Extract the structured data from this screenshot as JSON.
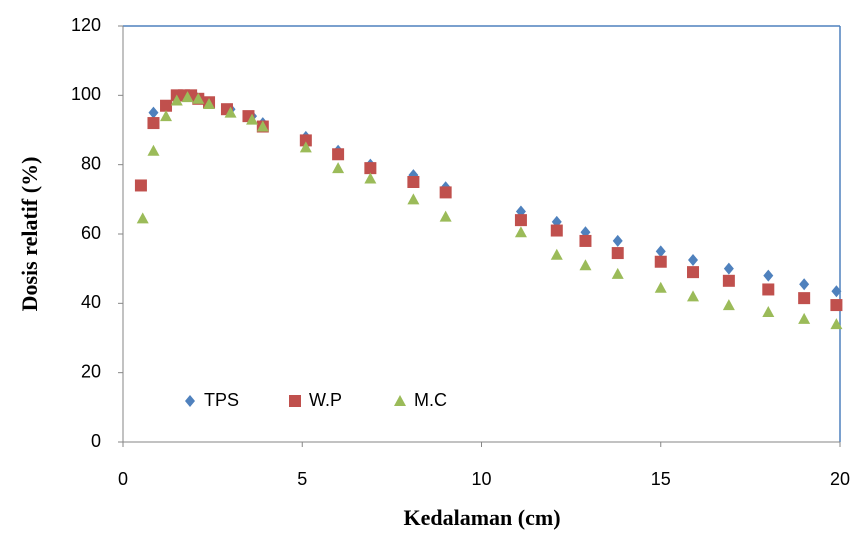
{
  "chart_data": {
    "type": "scatter",
    "xlabel": "Kedalaman (cm)",
    "ylabel": "Dosis relatif (%)",
    "xlim": [
      0,
      20
    ],
    "xticks": [
      0,
      5,
      10,
      15,
      20
    ],
    "ylim": [
      0,
      120
    ],
    "yticks": [
      0,
      20,
      40,
      60,
      80,
      100,
      120
    ],
    "series": [
      {
        "name": "TPS",
        "color": "#4f81bd",
        "marker": "diamond",
        "x": [
          0.85,
          1.5,
          1.8,
          2.0,
          2.4,
          3.0,
          3.6,
          3.9,
          5.1,
          6.0,
          6.9,
          8.1,
          9.0,
          11.1,
          12.1,
          12.9,
          13.8,
          15.0,
          15.9,
          16.9,
          18.0,
          19.0,
          19.9
        ],
        "values": [
          95,
          99,
          100,
          100,
          98,
          96,
          94,
          92,
          88,
          84,
          80,
          77,
          73.5,
          66.5,
          63.5,
          60.5,
          58,
          55,
          52.5,
          50,
          48,
          45.5,
          43.5
        ]
      },
      {
        "name": "W.P",
        "color": "#c0504d",
        "marker": "square",
        "x": [
          0.5,
          0.85,
          1.2,
          1.5,
          1.7,
          1.9,
          2.1,
          2.4,
          2.9,
          3.5,
          3.9,
          5.1,
          6.0,
          6.9,
          8.1,
          9.0,
          11.1,
          12.1,
          12.9,
          13.8,
          15.0,
          15.9,
          16.9,
          18.0,
          19.0,
          19.9
        ],
        "values": [
          74,
          92,
          97,
          100,
          100,
          100,
          99,
          98,
          96,
          94,
          91,
          87,
          83,
          79,
          75,
          72,
          64,
          61,
          58,
          54.5,
          52,
          49,
          46.5,
          44,
          41.5,
          39.5
        ]
      },
      {
        "name": "M.C",
        "color": "#9bbb59",
        "marker": "triangle",
        "x": [
          0.55,
          0.85,
          1.2,
          1.5,
          1.8,
          2.1,
          2.4,
          3.0,
          3.6,
          3.9,
          5.1,
          6.0,
          6.9,
          8.1,
          9.0,
          11.1,
          12.1,
          12.9,
          13.8,
          15.0,
          15.9,
          16.9,
          18.0,
          19.0,
          19.9
        ],
        "values": [
          64.5,
          84,
          94,
          98.5,
          99.5,
          99,
          97.5,
          95,
          93,
          91,
          85,
          79,
          76,
          70,
          65,
          60.5,
          54,
          51,
          48.5,
          44.5,
          42,
          39.5,
          37.5,
          35.5,
          34
        ]
      }
    ]
  }
}
